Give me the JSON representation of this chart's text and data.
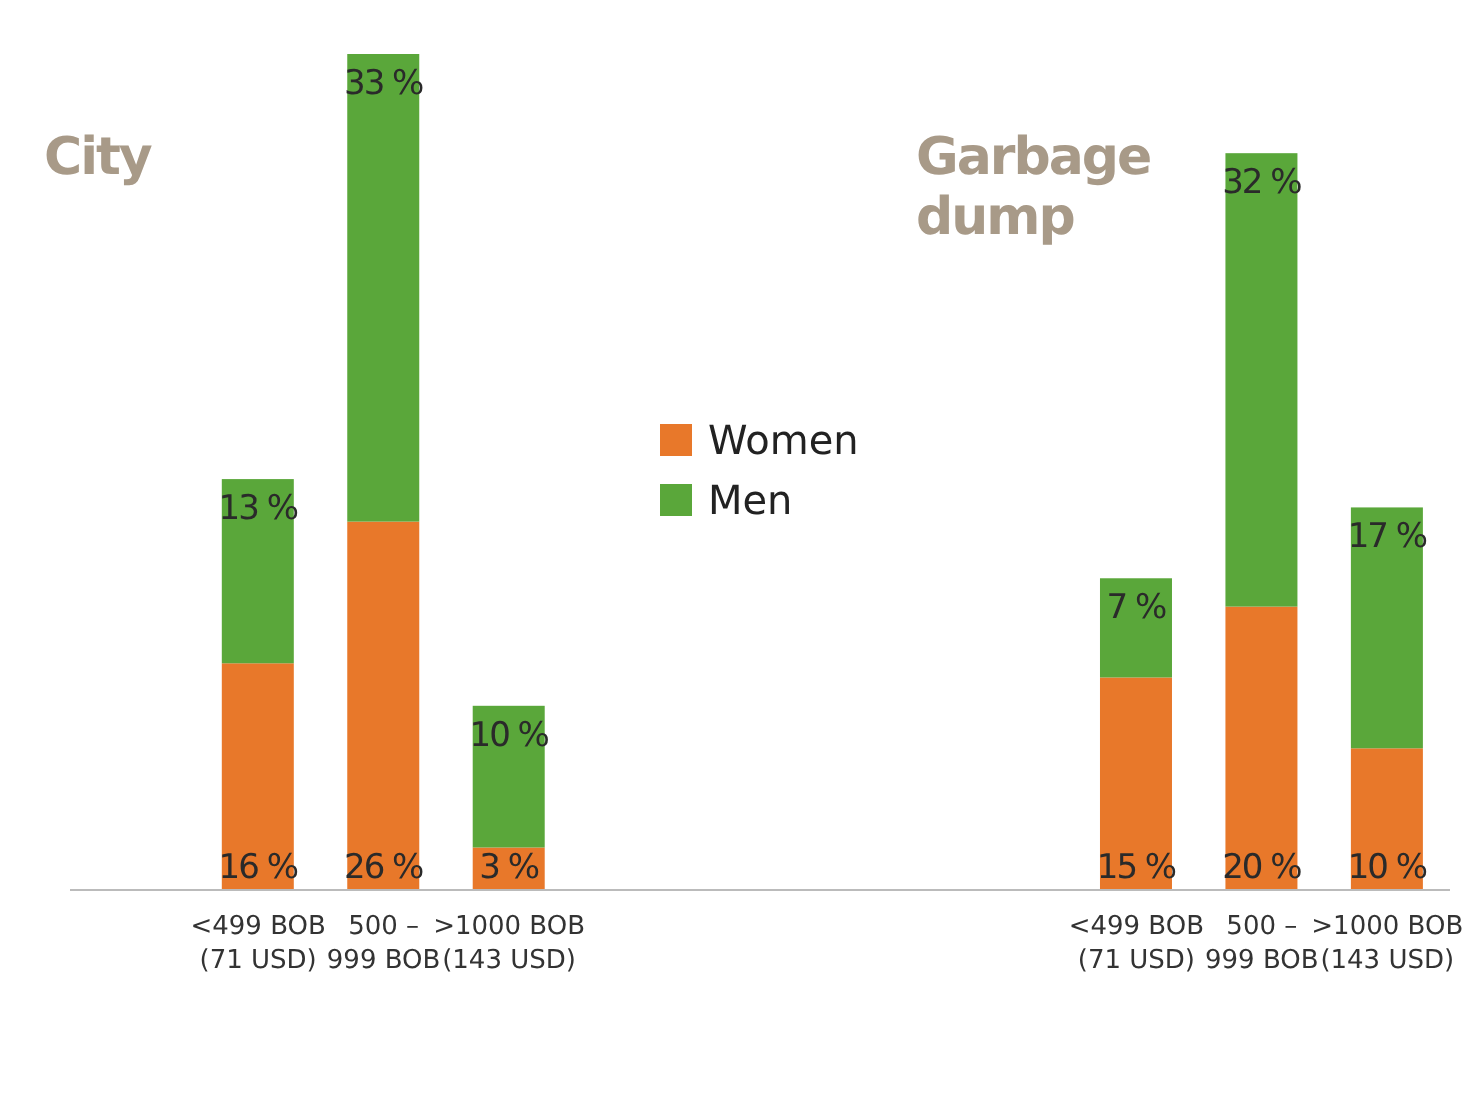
{
  "chart_data": {
    "type": "bar",
    "stacked": true,
    "categories": [
      null,
      "<499 BOB\n(71 USD)",
      "500 –\n999 BOB",
      ">1000 BOB\n(143 USD)",
      null,
      null,
      null,
      null,
      "<499 BOB\n(71 USD)",
      "500 –\n999 BOB",
      ">1000 BOB\n(143 USD)"
    ],
    "series": [
      {
        "name": "Women",
        "color": "#e8782a",
        "values": [
          null,
          16,
          26,
          3,
          null,
          null,
          null,
          null,
          15,
          20,
          10
        ],
        "value_labels": [
          null,
          "16 %",
          "26 %",
          "3 %",
          null,
          null,
          null,
          null,
          "15 %",
          "20 %",
          "10 %"
        ]
      },
      {
        "name": "Men",
        "color": "#5aa73a",
        "values": [
          null,
          13,
          33,
          10,
          null,
          null,
          null,
          null,
          7,
          32,
          17
        ],
        "value_labels": [
          null,
          "13 %",
          "33 %",
          "10 %",
          null,
          null,
          null,
          null,
          "7 %",
          "32 %",
          "17 %"
        ]
      }
    ],
    "annotations": [
      "City",
      "Garbage dump"
    ],
    "legend": "top",
    "grid": false
  }
}
